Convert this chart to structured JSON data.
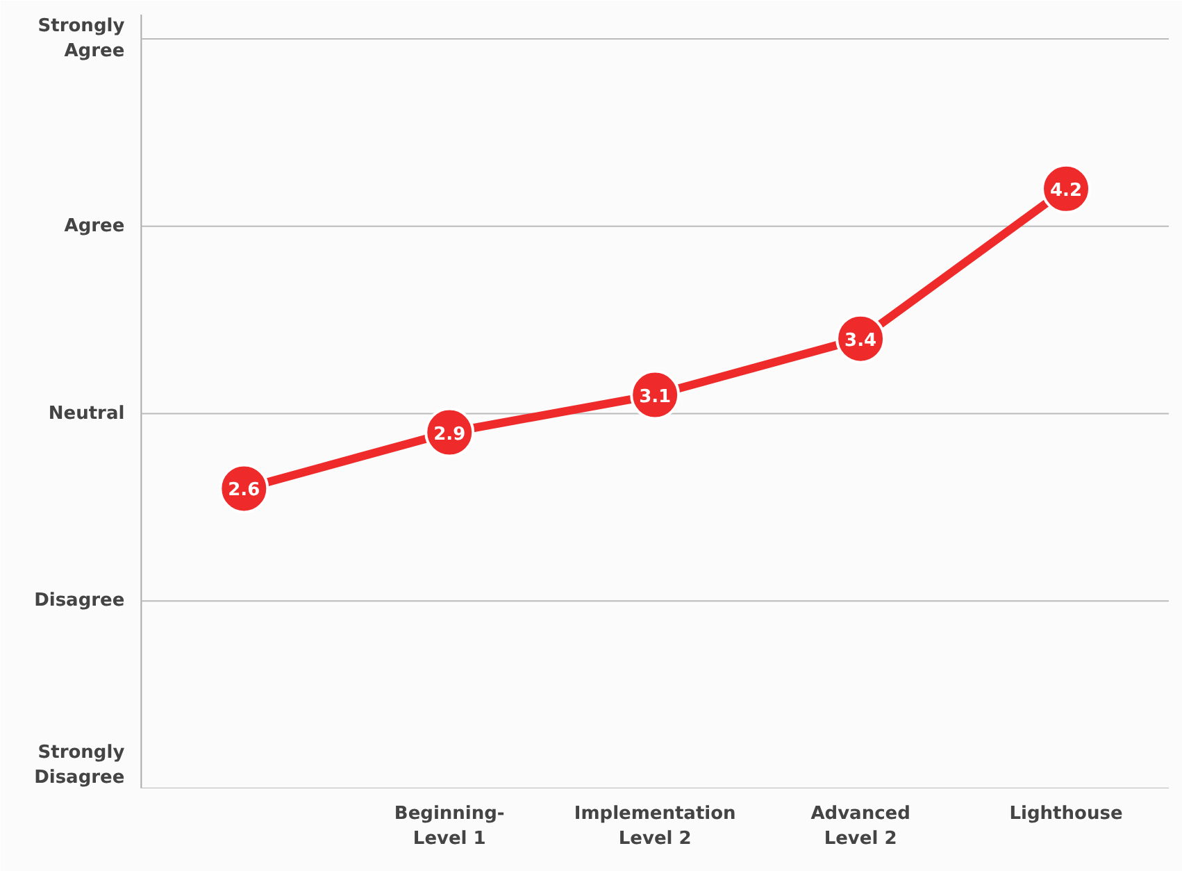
{
  "chart_data": {
    "type": "line",
    "categories": [
      null,
      "Beginning-\nLevel 1",
      "Implementation\nLevel 2",
      "Advanced\nLevel 2",
      "Lighthouse"
    ],
    "series": [
      {
        "color": "#ee2a2a",
        "values": [
          2.6,
          2.9,
          3.1,
          3.4,
          4.2
        ]
      }
    ],
    "ylim": [
      1,
      5.13
    ],
    "tick_labels": "x",
    "ref_lines": [
      {
        "axis": "y",
        "value": 1,
        "label": "Strongly\nDisagree",
        "color": "#bbbbbb"
      },
      {
        "axis": "y",
        "value": 2,
        "label": "Disagree",
        "color": "#bbbbbb"
      },
      {
        "axis": "y",
        "value": 3,
        "label": "Neutral",
        "color": "#bbbbbb"
      },
      {
        "axis": "y",
        "value": 4,
        "label": "Agree",
        "color": "#bbbbbb"
      },
      {
        "axis": "y",
        "value": 5,
        "label": "Strongly\nAgree",
        "color": "#bbbbbb"
      }
    ],
    "marker": "circle",
    "data_labels": true
  }
}
